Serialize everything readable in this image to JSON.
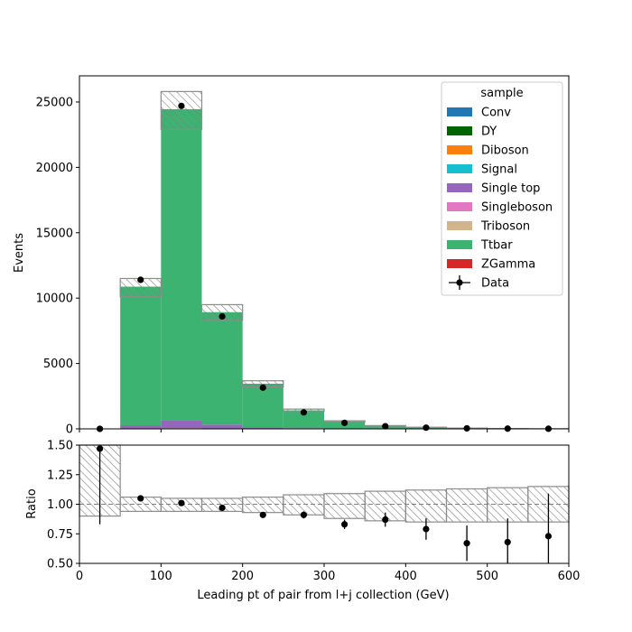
{
  "chart_data": {
    "type": "bar",
    "subtype": "stacked-histogram-with-ratio",
    "xlabel": "Leading pt of pair from l+j collection (GeV)",
    "xlim": [
      0,
      600
    ],
    "x_ticks": [
      "0",
      "100",
      "200",
      "300",
      "400",
      "500",
      "600"
    ],
    "bin_edges": [
      0,
      50,
      100,
      150,
      200,
      250,
      300,
      350,
      400,
      450,
      500,
      550,
      600
    ],
    "main_panel": {
      "ylabel": "Events",
      "ylim": [
        0,
        27000
      ],
      "y_ticks": [
        "0",
        "5000",
        "10000",
        "15000",
        "20000",
        "25000"
      ],
      "series": [
        {
          "name": "Conv",
          "color": "#1f77b4",
          "values": [
            0,
            0,
            0,
            0,
            0,
            0,
            0,
            0,
            0,
            0,
            0,
            0
          ]
        },
        {
          "name": "DY",
          "color": "#006400",
          "values": [
            0,
            20,
            40,
            20,
            10,
            5,
            2,
            1,
            0,
            0,
            0,
            0
          ]
        },
        {
          "name": "Diboson",
          "color": "#ff7f0e",
          "values": [
            0,
            5,
            10,
            5,
            3,
            1,
            1,
            0,
            0,
            0,
            0,
            0
          ]
        },
        {
          "name": "Signal",
          "color": "#17becf",
          "values": [
            0,
            0,
            0,
            0,
            0,
            0,
            0,
            0,
            0,
            0,
            0,
            0
          ]
        },
        {
          "name": "Single top",
          "color": "#9467bd",
          "values": [
            0,
            250,
            600,
            300,
            120,
            50,
            20,
            8,
            4,
            2,
            1,
            1
          ]
        },
        {
          "name": "Singleboson",
          "color": "#e377c2",
          "values": [
            0,
            0,
            0,
            0,
            0,
            0,
            0,
            0,
            0,
            0,
            0,
            0
          ]
        },
        {
          "name": "Triboson",
          "color": "#d2b48c",
          "values": [
            0,
            0,
            0,
            0,
            0,
            0,
            0,
            0,
            0,
            0,
            0,
            0
          ]
        },
        {
          "name": "Ttbar",
          "color": "#3cb371",
          "values": [
            0,
            10600,
            23800,
            8600,
            3320,
            1360,
            540,
            225,
            110,
            50,
            25,
            10
          ]
        },
        {
          "name": "ZGamma",
          "color": "#d62728",
          "values": [
            0,
            0,
            0,
            0,
            0,
            0,
            0,
            0,
            0,
            0,
            0,
            0
          ]
        }
      ],
      "uncertainty_band": {
        "lower": [
          0,
          10100,
          22900,
          8300,
          3200,
          1330,
          525,
          215,
          105,
          48,
          24,
          10
        ],
        "upper": [
          0,
          11500,
          25800,
          9500,
          3680,
          1510,
          615,
          250,
          125,
          58,
          28,
          12
        ]
      },
      "data_points": {
        "name": "Data",
        "x": [
          25,
          75,
          125,
          175,
          225,
          275,
          325,
          375,
          425,
          475,
          525,
          575
        ],
        "y": [
          2,
          11400,
          24700,
          8600,
          3150,
          1260,
          460,
          200,
          90,
          40,
          17,
          8
        ]
      },
      "legend": {
        "title": "sample",
        "placement": "top-right",
        "entries": [
          "Conv",
          "DY",
          "Diboson",
          "Signal",
          "Single top",
          "Singleboson",
          "Triboson",
          "Ttbar",
          "ZGamma",
          "Data"
        ]
      }
    },
    "ratio_panel": {
      "ylabel": "Ratio",
      "ylim": [
        0.5,
        1.5
      ],
      "y_ticks": [
        "0.50",
        "0.75",
        "1.00",
        "1.25",
        "1.50"
      ],
      "reference_line": 1.0,
      "band_lower": [
        0.9,
        0.94,
        0.94,
        0.94,
        0.93,
        0.91,
        0.88,
        0.86,
        0.85,
        0.85,
        0.85,
        0.85
      ],
      "band_upper": [
        1.5,
        1.06,
        1.05,
        1.05,
        1.06,
        1.08,
        1.09,
        1.11,
        1.12,
        1.13,
        1.14,
        1.15
      ],
      "points": {
        "x": [
          25,
          75,
          125,
          175,
          225,
          275,
          325,
          375,
          425,
          475,
          525,
          575
        ],
        "y": [
          1.47,
          1.05,
          1.01,
          0.97,
          0.91,
          0.91,
          0.83,
          0.87,
          0.79,
          0.67,
          0.68,
          0.73
        ],
        "err_low": [
          0.64,
          0.01,
          0.01,
          0.01,
          0.02,
          0.03,
          0.04,
          0.06,
          0.09,
          0.15,
          0.2,
          0.36
        ],
        "err_high": [
          0.64,
          0.01,
          0.01,
          0.01,
          0.02,
          0.03,
          0.04,
          0.06,
          0.09,
          0.15,
          0.2,
          0.36
        ]
      }
    }
  }
}
